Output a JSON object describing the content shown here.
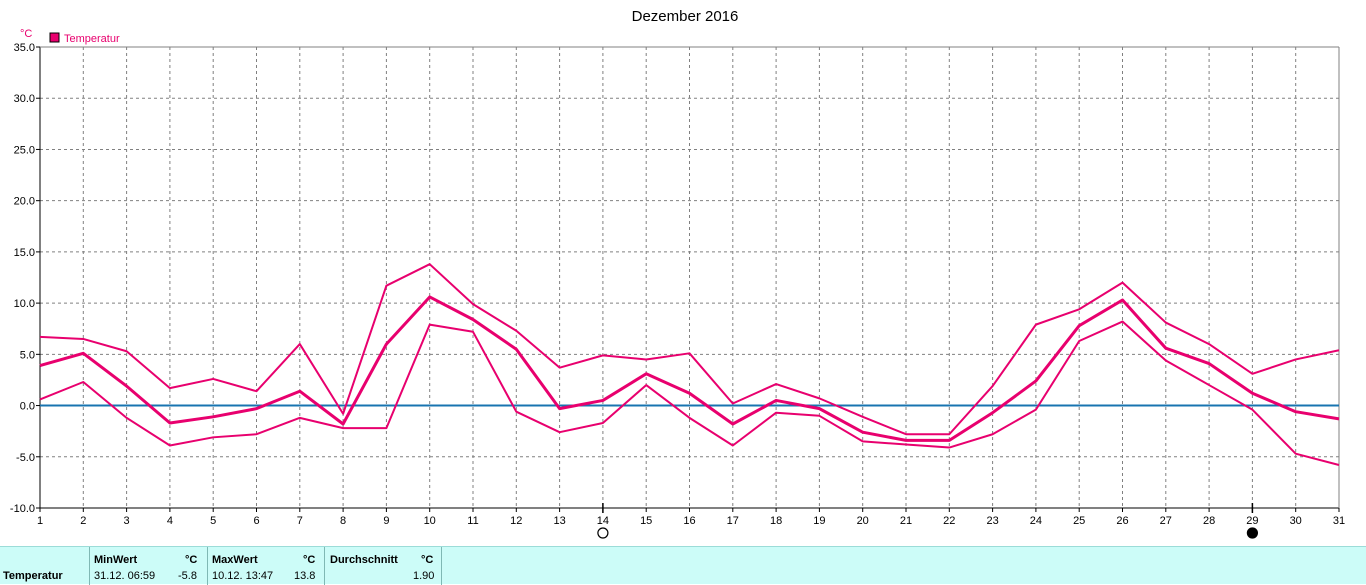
{
  "chart_data": {
    "type": "line",
    "title": "Dezember 2016",
    "y_unit": "°C",
    "legend": [
      "Temperatur"
    ],
    "legend_position": "top-left",
    "grid": true,
    "ylim": [
      -10,
      35
    ],
    "y_ticks": [
      "35.0",
      "30.0",
      "25.0",
      "20.0",
      "15.0",
      "10.0",
      "5.0",
      "0.0",
      "-5.0",
      "-10.0"
    ],
    "x": [
      1,
      2,
      3,
      4,
      5,
      6,
      7,
      8,
      9,
      10,
      11,
      12,
      13,
      14,
      15,
      16,
      17,
      18,
      19,
      20,
      21,
      22,
      23,
      24,
      25,
      26,
      27,
      28,
      29,
      30,
      31
    ],
    "series": [
      {
        "name": "Temperatur",
        "role": "mean",
        "color": "#e8006e",
        "values": [
          3.9,
          5.1,
          1.9,
          -1.7,
          -1.1,
          -0.3,
          1.4,
          -1.8,
          6.0,
          10.6,
          8.4,
          5.5,
          -0.3,
          0.5,
          3.1,
          1.2,
          -1.8,
          0.5,
          -0.3,
          -2.6,
          -3.4,
          -3.4,
          -0.7,
          2.4,
          7.8,
          10.3,
          5.6,
          4.1,
          1.2,
          -0.6,
          -1.3
        ]
      },
      {
        "role": "max",
        "color": "#e8006e",
        "values": [
          6.7,
          6.5,
          5.3,
          1.7,
          2.6,
          1.4,
          6.0,
          -0.8,
          11.7,
          13.8,
          9.9,
          7.3,
          3.7,
          4.9,
          4.5,
          5.1,
          0.2,
          2.1,
          0.7,
          -1.1,
          -2.8,
          -2.8,
          1.9,
          7.9,
          9.4,
          12.0,
          8.1,
          6.0,
          3.1,
          4.5,
          5.4
        ]
      },
      {
        "role": "min",
        "color": "#e8006e",
        "values": [
          0.6,
          2.3,
          -1.2,
          -3.9,
          -3.1,
          -2.8,
          -1.2,
          -2.2,
          -2.2,
          7.9,
          7.2,
          -0.6,
          -2.6,
          -1.7,
          2.0,
          -1.2,
          -3.9,
          -0.7,
          -1.0,
          -3.5,
          -3.8,
          -4.1,
          -2.8,
          -0.4,
          6.3,
          8.2,
          4.4,
          2.0,
          -0.4,
          -4.7,
          -5.8
        ]
      }
    ],
    "zero_line_color": "#1874b0",
    "moon_phases": [
      {
        "day": 14,
        "phase": "full-moon-icon"
      },
      {
        "day": 29,
        "phase": "new-moon-icon"
      }
    ]
  },
  "stats": {
    "row_label": "Temperatur",
    "min_label": "MinWert",
    "min_unit": "°C",
    "min_time": "31.12.  06:59",
    "min_value": "-5.8",
    "max_label": "MaxWert",
    "max_unit": "°C",
    "max_time": "10.12.  13:47",
    "max_value": "13.8",
    "avg_label": "Durchschnitt",
    "avg_unit": "°C",
    "avg_value": "1.90"
  }
}
